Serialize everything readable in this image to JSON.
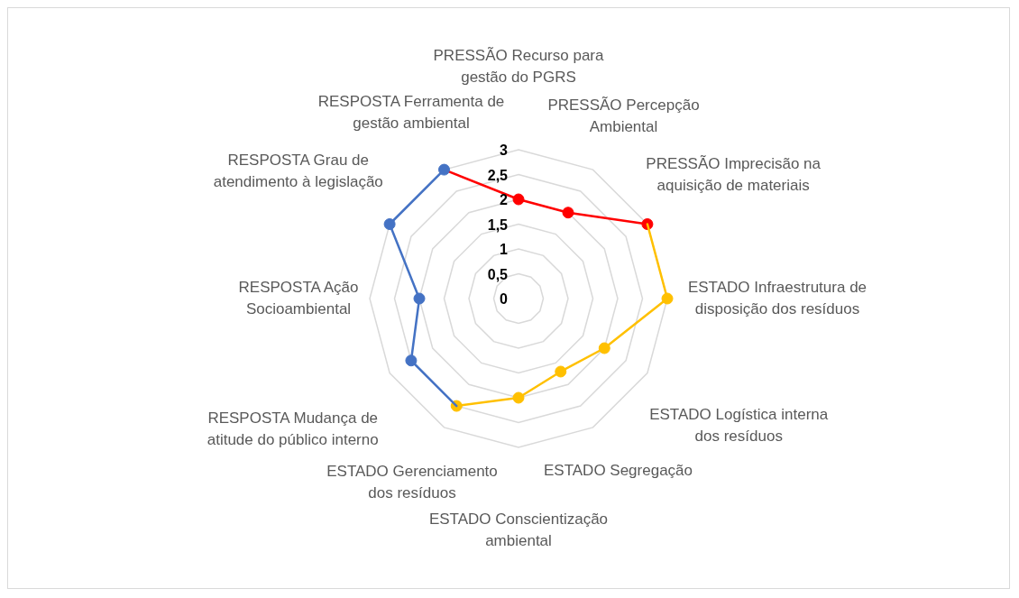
{
  "chart_data": {
    "type": "radar",
    "categories": [
      "PRESSÃO Recurso para gestão do PGRS",
      "PRESSÃO Percepção Ambiental",
      "PRESSÃO Imprecisão na aquisição de materiais",
      "ESTADO Infraestrutura de disposição dos resíduos",
      "ESTADO Logística interna dos resíduos",
      "ESTADO Segregação",
      "ESTADO Conscientização ambiental",
      "ESTADO Gerenciamento dos resíduos",
      "RESPOSTA Mudança de atitude do público interno",
      "RESPOSTA Ação Socioambiental",
      "RESPOSTA Grau de atendimento à legislação",
      "RESPOSTA Ferramenta de gestão ambiental"
    ],
    "series": [
      {
        "color": "#ff0000",
        "values": [
          2,
          2,
          3,
          null,
          null,
          null,
          null,
          null,
          null,
          null,
          null,
          3
        ]
      },
      {
        "color": "#ffc000",
        "values": [
          null,
          null,
          3,
          3,
          2,
          1.7,
          2,
          2.5,
          null,
          null,
          null,
          null
        ]
      },
      {
        "color": "#4472c4",
        "values": [
          null,
          null,
          null,
          null,
          null,
          null,
          null,
          2.5,
          2.5,
          2,
          3,
          3
        ]
      }
    ],
    "ylim": [
      0,
      3
    ],
    "yticks": [
      0,
      {
        "value": 0.5,
        "label": "0,5"
      },
      1,
      {
        "value": 1.5,
        "label": "1,5"
      },
      2,
      {
        "value": 2.5,
        "label": "2,5"
      },
      3
    ],
    "grid": true,
    "legend": false,
    "marker": "circle",
    "line_style": "solid"
  }
}
